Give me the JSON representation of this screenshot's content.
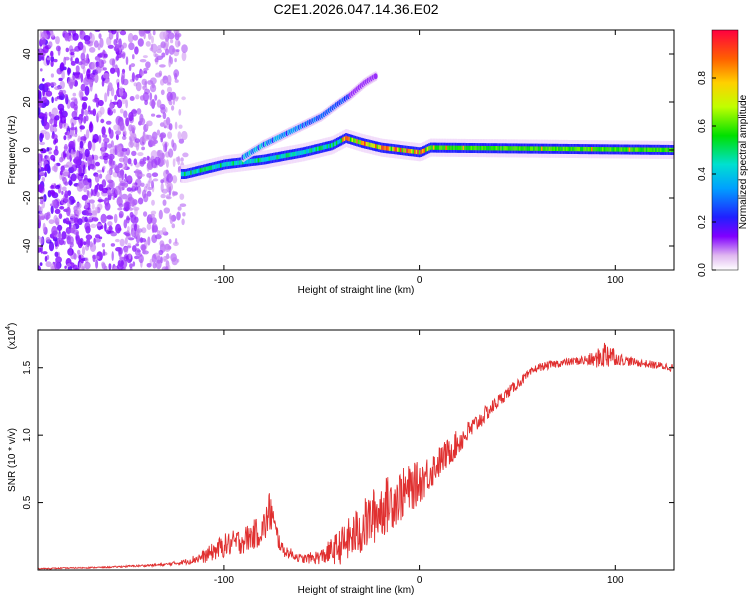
{
  "title": "C2E1.2026.047.14.36.E02",
  "chart_data": [
    {
      "type": "heatmap",
      "name": "spectrogram",
      "xlabel": "Height of straight line (km)",
      "ylabel": "Frequency (Hz)",
      "xlim": [
        -195,
        130
      ],
      "ylim": [
        -50,
        50
      ],
      "xticks": [
        -100,
        0,
        100
      ],
      "xtick_labels": [
        "-100",
        "0",
        "100"
      ],
      "yticks": [
        40,
        20,
        0,
        -20,
        -40
      ],
      "ytick_labels": [
        "40",
        "20",
        "0",
        "-20",
        "-40"
      ],
      "noise_region_x": [
        -195,
        -118
      ],
      "lower_branch": {
        "x": [
          -120,
          -100,
          -80,
          -60,
          -45,
          -38,
          -30,
          -20,
          -10,
          0,
          5,
          130
        ],
        "y": [
          -10,
          -6,
          -4,
          -1,
          2,
          5,
          3,
          1,
          0,
          -1,
          1,
          0
        ]
      },
      "upper_branch": {
        "x": [
          -90,
          -80,
          -70,
          -60,
          -50,
          -42,
          -35,
          -28,
          -22
        ],
        "y": [
          -3,
          2,
          6,
          10,
          14,
          19,
          23,
          28,
          31
        ]
      },
      "colorbar": {
        "label": "Normalized spectral amplitude",
        "range": [
          0,
          1
        ],
        "ticks": [
          0.0,
          0.2,
          0.4,
          0.6,
          0.8
        ],
        "tick_labels": [
          "0.0",
          "0.2",
          "0.4",
          "0.6",
          "0.8"
        ]
      }
    },
    {
      "type": "line",
      "name": "snr",
      "xlabel": "Height of straight line (km)",
      "ylabel": "SNR (10 * v/v)",
      "scale_note": "(x10",
      "scale_exp": "4",
      "xlim": [
        -195,
        130
      ],
      "ylim": [
        0,
        1.78
      ],
      "xticks": [
        -100,
        0,
        100
      ],
      "xtick_labels": [
        "-100",
        "0",
        "100"
      ],
      "yticks": [
        0.5,
        1.0,
        1.5
      ],
      "ytick_labels": [
        "0.5",
        "1.0",
        "1.5"
      ],
      "color": "#e03030",
      "x": [
        -195,
        -160,
        -130,
        -120,
        -110,
        -100,
        -90,
        -80,
        -76,
        -74,
        -70,
        -60,
        -50,
        -40,
        -30,
        -20,
        -10,
        0,
        10,
        20,
        30,
        40,
        50,
        60,
        70,
        80,
        90,
        97,
        100,
        110,
        120,
        130
      ],
      "y": [
        0.01,
        0.02,
        0.04,
        0.06,
        0.1,
        0.18,
        0.22,
        0.3,
        0.45,
        0.3,
        0.15,
        0.08,
        0.1,
        0.18,
        0.3,
        0.45,
        0.55,
        0.65,
        0.8,
        0.95,
        1.1,
        1.25,
        1.38,
        1.5,
        1.53,
        1.55,
        1.56,
        1.62,
        1.57,
        1.54,
        1.52,
        1.5
      ],
      "noise_amp": [
        0.004,
        0.005,
        0.01,
        0.02,
        0.05,
        0.09,
        0.1,
        0.12,
        0.18,
        0.1,
        0.05,
        0.03,
        0.06,
        0.14,
        0.2,
        0.22,
        0.2,
        0.16,
        0.12,
        0.1,
        0.07,
        0.05,
        0.04,
        0.03,
        0.03,
        0.03,
        0.06,
        0.14,
        0.05,
        0.03,
        0.03,
        0.03
      ]
    }
  ]
}
